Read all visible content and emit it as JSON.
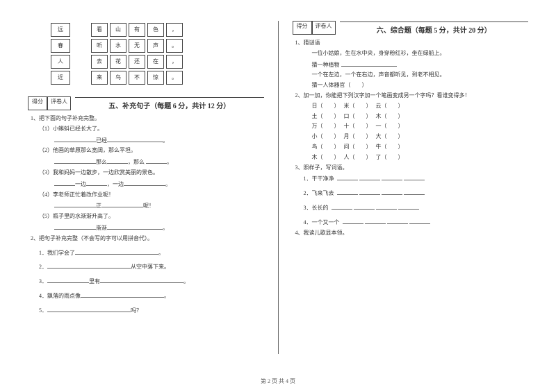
{
  "footer": "第 2 页 共 4 页",
  "left": {
    "table": {
      "r1c1": "远",
      "r1c2": "看",
      "r1c3": "山",
      "r1c4": "有",
      "r1c5": "色",
      "r1c6": "，",
      "r2c1": "春",
      "r2c2": "听",
      "r2c3": "水",
      "r2c4": "无",
      "r2c5": "声",
      "r2c6": "。",
      "r3c1": "人",
      "r3c2": "去",
      "r3c3": "花",
      "r3c4": "还",
      "r3c5": "在",
      "r3c6": "，",
      "r4c1": "近",
      "r4c2": "来",
      "r4c3": "鸟",
      "r4c4": "不",
      "r4c5": "惊",
      "r4c6": "。"
    },
    "score_label_1": "得分",
    "score_label_2": "评卷人",
    "section_title": "五、补充句子（每题 6 分，共计 12 分）",
    "q1": "1、把下面的句子补充完整。",
    "q1_1": "（1）小蝌蚪已经长大了。",
    "q1_1b": "已经",
    "q1_2": "（2）他画的草原那么宽阔，那么平坦。",
    "q1_2b_a": "那么",
    "q1_2b_b": "那么",
    "q1_3": "（3）我和妈妈一边散步，一边欣赏美丽的景色。",
    "q1_3b_a": "一边",
    "q1_3b_b": "，一边",
    "q1_4": "（4）李老师正忙着改作业呢！",
    "q1_4b_a": "正",
    "q1_4b_b": "呢！",
    "q1_5": "（5）瓶子里的水渐渐升高了。",
    "q1_5b": "渐渐",
    "q2": "2、把句子补充完整（不会写的字可以用拼音代）。",
    "q2_1": "1．我们学会了",
    "q2_2_suffix": "从空中落下来。",
    "q2_3_mid": "里有",
    "q2_4": "4．飘落的雨点像",
    "q2_5_suffix": "吗？",
    "n2": "2．",
    "n3": "3．",
    "n5": "5．"
  },
  "right": {
    "score_label_1": "得分",
    "score_label_2": "评卷人",
    "section_title": "六、综合题（每题 5 分，共计 20 分）",
    "q1": "1、猜谜语",
    "q1_1": "一位小姑娘，生在水中央，身穿粉红衫，坐在绿船上。",
    "q1_1g": "猜一种植物",
    "q1_2": "一个在左边，一个在右边，声音都听见，到老不相见。",
    "q1_2g": "猜一人体器官",
    "q2": "2、加一加，你能把下列汉字加一个笔画变成另一个字吗？看谁变得多！",
    "q2_rows": [
      {
        "a": "日",
        "b": "米",
        "c": "云"
      },
      {
        "a": "土",
        "b": "口",
        "c": "木"
      },
      {
        "a": "万",
        "b": "十",
        "c": "一"
      },
      {
        "a": "小",
        "b": "月",
        "c": "大"
      },
      {
        "a": "鸟",
        "b": "问",
        "c": "牛"
      },
      {
        "a": "木",
        "b": "人",
        "c": "了"
      }
    ],
    "q3": "3、照样子，写词语。",
    "q3_1": "1．干干净净",
    "q3_2": "2．飞来飞去",
    "q3_3": "3．长长的",
    "q3_4": "4．一个又一个",
    "q4": "4、我读儿歌显本领。"
  }
}
